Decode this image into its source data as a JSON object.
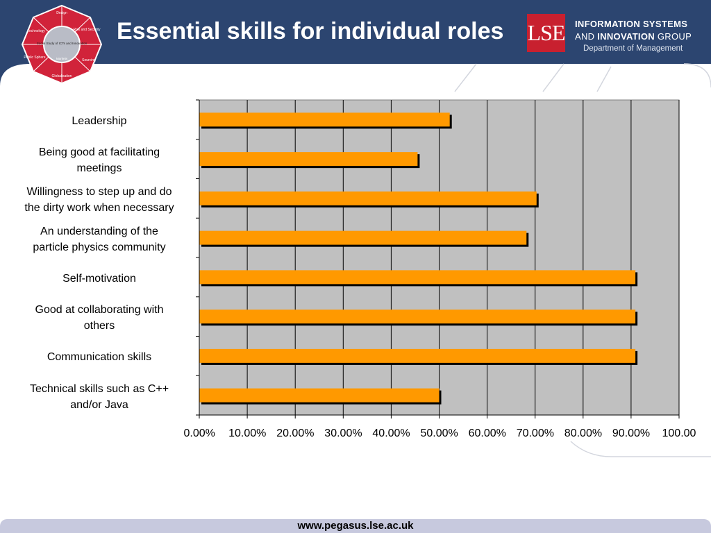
{
  "header": {
    "title": "Essential skills for individual roles",
    "emblem": {
      "icon": "social-study-emblem-icon",
      "segments": [
        "Design",
        "Risk and Security",
        "Sourcing",
        "Globalisation",
        "Public Sphere",
        "Technology"
      ],
      "center": "Social Study of ICTs and Innovation",
      "inner_bottom": "Markets"
    },
    "lse_logo": "LSE",
    "group_line1": "INFORMATION SYSTEMS",
    "group_line2_prefix": "AND ",
    "group_line2_bold": "INNOVATION",
    "group_line2_suffix": " GROUP",
    "department": "Department of Management",
    "colors": {
      "header_bg": "#2c4570",
      "logo_red": "#c8202f",
      "emblem_red": "#d1233a"
    }
  },
  "chart_data": {
    "type": "bar",
    "orientation": "horizontal",
    "categories": [
      "Leadership",
      "Being good at facilitating\nmeetings",
      "Willingness to step up and do\nthe dirty work when necessary",
      "An understanding of the\nparticle physics community",
      "Self-motivation",
      "Good at collaborating with\nothers",
      "Communication skills",
      "Technical skills such as C++\nand/or Java"
    ],
    "values": [
      52.2,
      45.5,
      70.3,
      68.2,
      90.9,
      90.9,
      90.9,
      50.0
    ],
    "xlim": [
      0,
      100
    ],
    "x_ticks": [
      "0.00%",
      "10.00%",
      "20.00%",
      "30.00%",
      "40.00%",
      "50.00%",
      "60.00%",
      "70.00%",
      "80.00%",
      "90.00%",
      "100.00"
    ],
    "grid": "vertical",
    "legend": "none",
    "colors": {
      "bar": "#ff9900",
      "bar_shadow": "#000000",
      "plot_bg": "#c0c0c0"
    }
  },
  "footer": {
    "url": "www.pegasus.lse.ac.uk"
  }
}
